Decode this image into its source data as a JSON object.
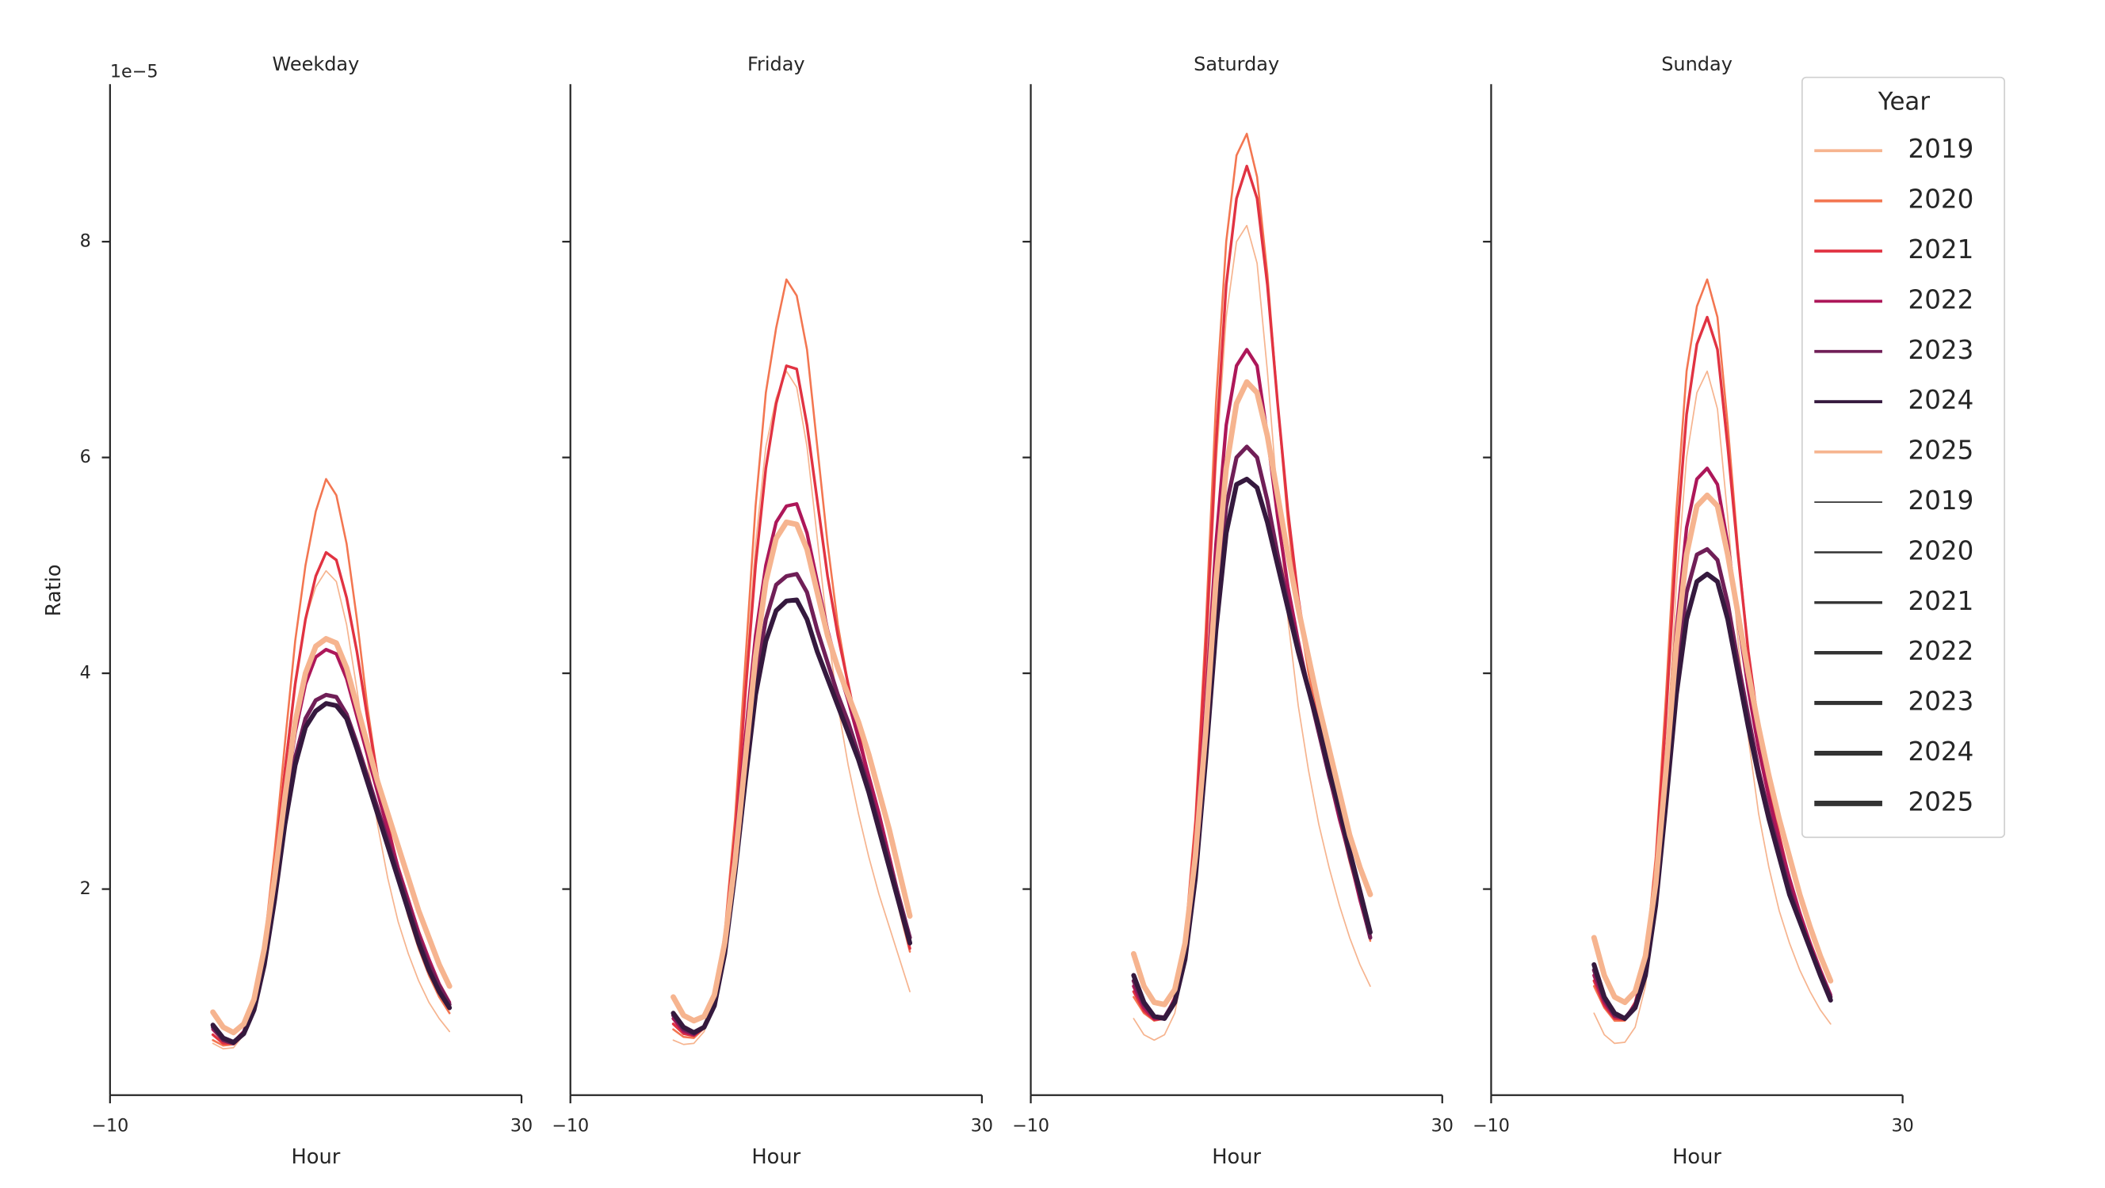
{
  "chart_data": [
    {
      "type": "line",
      "title": "Weekday",
      "xlabel": "Hour",
      "ylabel": "Ratio",
      "y_offset_label": "1e−5",
      "ytick_labels": true,
      "xlim": [
        -10,
        30
      ],
      "xticks": [
        {
          "value": -10,
          "label": "−10"
        },
        30
      ],
      "ylim": [
        0.09,
        9.46
      ],
      "yticks": [
        2,
        4,
        6,
        8
      ],
      "x": [
        0,
        1,
        2,
        3,
        4,
        5,
        6,
        7,
        8,
        9,
        10,
        11,
        12,
        13,
        14,
        15,
        16,
        17,
        18,
        19,
        20,
        21,
        22,
        23
      ],
      "series": [
        {
          "name": "2019",
          "color": "#f6b48f",
          "width": 1,
          "values": [
            0.57,
            0.52,
            0.53,
            0.65,
            0.93,
            1.45,
            2.25,
            3.15,
            3.95,
            4.5,
            4.8,
            4.95,
            4.85,
            4.45,
            3.85,
            3.2,
            2.6,
            2.1,
            1.7,
            1.4,
            1.15,
            0.95,
            0.8,
            0.68
          ]
        },
        {
          "name": "2020",
          "color": "#f37651",
          "width": 1.5,
          "values": [
            0.6,
            0.55,
            0.56,
            0.67,
            0.96,
            1.5,
            2.35,
            3.35,
            4.3,
            5.0,
            5.5,
            5.8,
            5.65,
            5.2,
            4.5,
            3.7,
            3.05,
            2.55,
            2.1,
            1.75,
            1.45,
            1.2,
            1.0,
            0.85
          ]
        },
        {
          "name": "2021",
          "color": "#e13342",
          "width": 2,
          "values": [
            0.65,
            0.57,
            0.57,
            0.68,
            0.95,
            1.45,
            2.2,
            3.1,
            3.9,
            4.5,
            4.9,
            5.12,
            5.05,
            4.7,
            4.2,
            3.6,
            3.05,
            2.6,
            2.2,
            1.85,
            1.55,
            1.3,
            1.1,
            0.93
          ]
        },
        {
          "name": "2022",
          "color": "#ad1759",
          "width": 2.5,
          "values": [
            0.7,
            0.6,
            0.58,
            0.68,
            0.93,
            1.4,
            2.05,
            2.8,
            3.45,
            3.9,
            4.15,
            4.22,
            4.18,
            3.95,
            3.6,
            3.25,
            2.9,
            2.55,
            2.2,
            1.9,
            1.6,
            1.35,
            1.12,
            0.95
          ]
        },
        {
          "name": "2023",
          "color": "#701f57",
          "width": 3,
          "values": [
            0.72,
            0.6,
            0.57,
            0.66,
            0.9,
            1.33,
            1.95,
            2.65,
            3.22,
            3.58,
            3.75,
            3.8,
            3.78,
            3.62,
            3.35,
            3.05,
            2.75,
            2.45,
            2.15,
            1.85,
            1.55,
            1.3,
            1.1,
            0.93
          ]
        },
        {
          "name": "2024",
          "color": "#35193e",
          "width": 3.5,
          "values": [
            0.74,
            0.62,
            0.58,
            0.66,
            0.88,
            1.3,
            1.9,
            2.6,
            3.15,
            3.5,
            3.65,
            3.72,
            3.7,
            3.58,
            3.3,
            3.0,
            2.7,
            2.4,
            2.1,
            1.8,
            1.5,
            1.25,
            1.05,
            0.9
          ]
        },
        {
          "name": "2025",
          "color": "#f6b48f",
          "width": 4,
          "values": [
            0.86,
            0.72,
            0.67,
            0.75,
            0.98,
            1.45,
            2.1,
            2.85,
            3.55,
            4.0,
            4.25,
            4.32,
            4.28,
            4.05,
            3.7,
            3.35,
            3.0,
            2.7,
            2.4,
            2.1,
            1.8,
            1.55,
            1.3,
            1.1
          ]
        }
      ]
    },
    {
      "type": "line",
      "title": "Friday",
      "xlabel": "Hour",
      "ytick_labels": false,
      "xlim": [
        -10,
        30
      ],
      "xticks": [
        {
          "value": -10,
          "label": "−10"
        },
        30
      ],
      "ylim": [
        0.09,
        9.46
      ],
      "yticks": [
        2,
        4,
        6,
        8
      ],
      "x": [
        0,
        1,
        2,
        3,
        4,
        5,
        6,
        7,
        8,
        9,
        10,
        11,
        12,
        13,
        14,
        15,
        16,
        17,
        18,
        19,
        20,
        21,
        22,
        23
      ],
      "series": [
        {
          "name": "2019",
          "color": "#f6b48f",
          "width": 1,
          "values": [
            0.6,
            0.56,
            0.57,
            0.68,
            0.96,
            1.55,
            2.55,
            3.9,
            5.2,
            6.1,
            6.55,
            6.8,
            6.65,
            6.1,
            5.25,
            4.4,
            3.7,
            3.15,
            2.7,
            2.3,
            1.95,
            1.65,
            1.35,
            1.05
          ]
        },
        {
          "name": "2020",
          "color": "#f37651",
          "width": 1.5,
          "values": [
            0.7,
            0.63,
            0.62,
            0.71,
            0.98,
            1.6,
            2.65,
            4.1,
            5.55,
            6.6,
            7.2,
            7.65,
            7.5,
            7.0,
            6.1,
            5.2,
            4.45,
            3.9,
            3.4,
            3.0,
            2.6,
            2.2,
            1.8,
            1.42
          ]
        },
        {
          "name": "2021",
          "color": "#e13342",
          "width": 2,
          "values": [
            0.75,
            0.66,
            0.64,
            0.72,
            0.97,
            1.55,
            2.5,
            3.8,
            5.0,
            5.9,
            6.5,
            6.85,
            6.82,
            6.3,
            5.6,
            4.9,
            4.35,
            3.9,
            3.45,
            3.05,
            2.65,
            2.25,
            1.85,
            1.45
          ]
        },
        {
          "name": "2022",
          "color": "#ad1759",
          "width": 2.5,
          "values": [
            0.8,
            0.68,
            0.65,
            0.72,
            0.95,
            1.48,
            2.35,
            3.4,
            4.35,
            5.0,
            5.4,
            5.55,
            5.57,
            5.3,
            4.85,
            4.4,
            4.05,
            3.75,
            3.4,
            3.05,
            2.7,
            2.3,
            1.9,
            1.5
          ]
        },
        {
          "name": "2023",
          "color": "#701f57",
          "width": 3,
          "values": [
            0.83,
            0.7,
            0.66,
            0.72,
            0.93,
            1.42,
            2.2,
            3.1,
            3.95,
            4.5,
            4.82,
            4.9,
            4.92,
            4.75,
            4.4,
            4.1,
            3.8,
            3.55,
            3.25,
            2.95,
            2.6,
            2.25,
            1.9,
            1.55
          ]
        },
        {
          "name": "2024",
          "color": "#35193e",
          "width": 3.5,
          "values": [
            0.85,
            0.72,
            0.67,
            0.72,
            0.92,
            1.4,
            2.15,
            3.0,
            3.8,
            4.3,
            4.58,
            4.67,
            4.68,
            4.5,
            4.2,
            3.95,
            3.7,
            3.45,
            3.2,
            2.9,
            2.55,
            2.2,
            1.85,
            1.5
          ]
        },
        {
          "name": "2025",
          "color": "#f6b48f",
          "width": 4,
          "values": [
            1.0,
            0.83,
            0.78,
            0.82,
            1.02,
            1.5,
            2.25,
            3.2,
            4.15,
            4.85,
            5.25,
            5.4,
            5.38,
            5.15,
            4.75,
            4.35,
            4.05,
            3.8,
            3.55,
            3.25,
            2.9,
            2.55,
            2.15,
            1.75
          ]
        }
      ]
    },
    {
      "type": "line",
      "title": "Saturday",
      "xlabel": "Hour",
      "ytick_labels": false,
      "xlim": [
        -10,
        30
      ],
      "xticks": [
        {
          "value": -10,
          "label": "−10"
        },
        30
      ],
      "ylim": [
        0.09,
        9.46
      ],
      "yticks": [
        2,
        4,
        6,
        8
      ],
      "x": [
        0,
        1,
        2,
        3,
        4,
        5,
        6,
        7,
        8,
        9,
        10,
        11,
        12,
        13,
        14,
        15,
        16,
        17,
        18,
        19,
        20,
        21,
        22,
        23
      ],
      "series": [
        {
          "name": "2019",
          "color": "#f6b48f",
          "width": 1,
          "values": [
            0.8,
            0.65,
            0.6,
            0.65,
            0.85,
            1.35,
            2.4,
            4.0,
            5.9,
            7.3,
            8.0,
            8.15,
            7.8,
            6.8,
            5.6,
            4.5,
            3.7,
            3.1,
            2.6,
            2.2,
            1.85,
            1.55,
            1.3,
            1.1
          ]
        },
        {
          "name": "2020",
          "color": "#f37651",
          "width": 1.5,
          "values": [
            1.0,
            0.85,
            0.78,
            0.8,
            1.0,
            1.55,
            2.65,
            4.4,
            6.5,
            8.0,
            8.8,
            9.0,
            8.6,
            7.7,
            6.5,
            5.4,
            4.6,
            4.0,
            3.5,
            3.05,
            2.65,
            2.25,
            1.9,
            1.52
          ]
        },
        {
          "name": "2021",
          "color": "#e13342",
          "width": 2,
          "values": [
            1.05,
            0.87,
            0.79,
            0.8,
            1.0,
            1.5,
            2.55,
            4.2,
            6.1,
            7.6,
            8.4,
            8.7,
            8.4,
            7.6,
            6.5,
            5.5,
            4.7,
            4.1,
            3.6,
            3.15,
            2.75,
            2.35,
            1.95,
            1.55
          ]
        },
        {
          "name": "2022",
          "color": "#ad1759",
          "width": 2.5,
          "values": [
            1.1,
            0.9,
            0.8,
            0.8,
            0.98,
            1.42,
            2.35,
            3.7,
            5.2,
            6.3,
            6.85,
            7.0,
            6.85,
            6.2,
            5.45,
            4.8,
            4.3,
            3.85,
            3.45,
            3.05,
            2.65,
            2.3,
            1.9,
            1.55
          ]
        },
        {
          "name": "2023",
          "color": "#701f57",
          "width": 3,
          "values": [
            1.15,
            0.93,
            0.82,
            0.81,
            0.97,
            1.38,
            2.2,
            3.35,
            4.65,
            5.55,
            6.0,
            6.1,
            6.0,
            5.6,
            5.1,
            4.65,
            4.25,
            3.85,
            3.45,
            3.05,
            2.7,
            2.3,
            1.95,
            1.55
          ]
        },
        {
          "name": "2024",
          "color": "#35193e",
          "width": 3.5,
          "values": [
            1.2,
            0.95,
            0.82,
            0.8,
            0.95,
            1.35,
            2.1,
            3.2,
            4.4,
            5.3,
            5.75,
            5.8,
            5.72,
            5.4,
            5.0,
            4.6,
            4.2,
            3.85,
            3.5,
            3.1,
            2.75,
            2.35,
            1.98,
            1.6
          ]
        },
        {
          "name": "2025",
          "color": "#f6b48f",
          "width": 4,
          "values": [
            1.4,
            1.1,
            0.95,
            0.93,
            1.07,
            1.5,
            2.3,
            3.45,
            4.85,
            5.9,
            6.5,
            6.7,
            6.6,
            6.2,
            5.65,
            5.1,
            4.6,
            4.15,
            3.7,
            3.3,
            2.9,
            2.5,
            2.2,
            1.95
          ]
        }
      ]
    },
    {
      "type": "line",
      "title": "Sunday",
      "xlabel": "Hour",
      "ytick_labels": false,
      "legend": "upper right",
      "legend_title": "Year",
      "size_legend_color": "#333333",
      "xlim": [
        -10,
        30
      ],
      "xticks": [
        {
          "value": -10,
          "label": "−10"
        },
        30
      ],
      "ylim": [
        0.09,
        9.46
      ],
      "yticks": [
        2,
        4,
        6,
        8
      ],
      "x": [
        0,
        1,
        2,
        3,
        4,
        5,
        6,
        7,
        8,
        9,
        10,
        11,
        12,
        13,
        14,
        15,
        16,
        17,
        18,
        19,
        20,
        21,
        22,
        23
      ],
      "series": [
        {
          "name": "2019",
          "color": "#f6b48f",
          "width": 1,
          "values": [
            0.85,
            0.65,
            0.57,
            0.58,
            0.72,
            1.1,
            1.9,
            3.2,
            4.8,
            6.0,
            6.6,
            6.8,
            6.45,
            5.45,
            4.3,
            3.4,
            2.7,
            2.2,
            1.8,
            1.5,
            1.25,
            1.05,
            0.88,
            0.75
          ]
        },
        {
          "name": "2020",
          "color": "#f37651",
          "width": 1.5,
          "values": [
            1.1,
            0.9,
            0.78,
            0.78,
            0.95,
            1.35,
            2.3,
            3.8,
            5.5,
            6.8,
            7.4,
            7.65,
            7.3,
            6.3,
            5.15,
            4.2,
            3.45,
            2.9,
            2.45,
            2.05,
            1.72,
            1.45,
            1.2,
            0.98
          ]
        },
        {
          "name": "2021",
          "color": "#e13342",
          "width": 2,
          "values": [
            1.15,
            0.92,
            0.8,
            0.79,
            0.95,
            1.33,
            2.2,
            3.6,
            5.2,
            6.4,
            7.05,
            7.3,
            7.0,
            6.1,
            5.1,
            4.2,
            3.5,
            2.95,
            2.5,
            2.1,
            1.78,
            1.5,
            1.25,
            1.02
          ]
        },
        {
          "name": "2022",
          "color": "#ad1759",
          "width": 2.5,
          "values": [
            1.2,
            0.95,
            0.82,
            0.8,
            0.93,
            1.27,
            2.0,
            3.15,
            4.4,
            5.35,
            5.8,
            5.9,
            5.75,
            5.2,
            4.5,
            3.85,
            3.3,
            2.85,
            2.45,
            2.1,
            1.78,
            1.5,
            1.25,
            1.02
          ]
        },
        {
          "name": "2023",
          "color": "#701f57",
          "width": 3,
          "values": [
            1.25,
            0.98,
            0.83,
            0.8,
            0.92,
            1.23,
            1.9,
            2.9,
            4.0,
            4.75,
            5.1,
            5.15,
            5.05,
            4.65,
            4.1,
            3.6,
            3.1,
            2.7,
            2.35,
            2.0,
            1.72,
            1.45,
            1.22,
            1.0
          ]
        },
        {
          "name": "2024",
          "color": "#35193e",
          "width": 3.5,
          "values": [
            1.3,
            1.0,
            0.85,
            0.8,
            0.9,
            1.2,
            1.85,
            2.8,
            3.8,
            4.5,
            4.85,
            4.92,
            4.85,
            4.5,
            4.0,
            3.5,
            3.05,
            2.65,
            2.3,
            1.95,
            1.7,
            1.45,
            1.2,
            0.97
          ]
        },
        {
          "name": "2025",
          "color": "#f6b48f",
          "width": 4,
          "values": [
            1.55,
            1.2,
            1.0,
            0.95,
            1.05,
            1.38,
            2.05,
            3.1,
            4.25,
            5.1,
            5.55,
            5.65,
            5.55,
            5.1,
            4.55,
            4.0,
            3.5,
            3.05,
            2.65,
            2.3,
            1.95,
            1.65,
            1.38,
            1.15
          ]
        }
      ]
    }
  ]
}
